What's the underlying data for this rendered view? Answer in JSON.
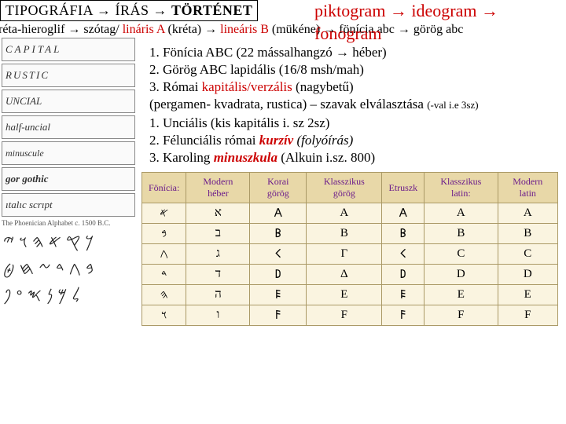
{
  "header": {
    "title_parts": [
      "TIPOGRÁFIA → ",
      "ÍRÁS",
      " → ",
      "TÖRTÉNET"
    ],
    "subtitle": "piktogram → ideogram → fonogram"
  },
  "evolution": {
    "text_parts": [
      {
        "t": "kréta-hieroglif → szótag/ ",
        "c": "#000000"
      },
      {
        "t": "lináris A",
        "c": "#cc0000"
      },
      {
        "t": " (kréta) → ",
        "c": "#000000"
      },
      {
        "t": "lineáris B",
        "c": "#cc0000"
      },
      {
        "t": " (mükéne) → fönícia abc → görög abc",
        "c": "#000000"
      }
    ]
  },
  "scripts": [
    {
      "label": "CAPITAL",
      "style": "font-family:serif;letter-spacing:3px;"
    },
    {
      "label": "RUSTIC",
      "style": "font-family:serif;font-weight:300;letter-spacing:2px;"
    },
    {
      "label": "UNCIAL",
      "style": "font-family:serif;font-variant:small-caps;"
    },
    {
      "label": "half-uncial",
      "style": "font-family:cursive;"
    },
    {
      "label": "minuscule",
      "style": "font-family:cursive;font-size:12px;"
    },
    {
      "label": "gor gothic",
      "style": "font-family:serif;font-weight:bold;"
    },
    {
      "label": "ıtalıc scrıpt",
      "style": "font-style:italic;"
    }
  ],
  "phoenician_note": "The Phoenician Alphabet c. 1500 B.C.",
  "glyph_rows": [
    "𐤊𐤒𐤀𐤄𐤅𐤉",
    "𐤁𐤂𐤃𐤆𐤇𐤈",
    "𐤋𐤌𐤍𐤎𐤏𐤐"
  ],
  "list1": [
    {
      "n": "1.",
      "pre": "Fönícia ABC (22 mássalhangzó → héber)",
      "red": ""
    },
    {
      "n": "2.",
      "pre": "Görög ABC  lapidális (16/8 msh/mah)",
      "red": ""
    },
    {
      "n": "3.",
      "pre": "Római ",
      "red": "kapitális/verzális",
      "post": " (nagybetű)"
    }
  ],
  "pergamen": "(pergamen- kvadrata, rustica) – szavak elválasztása ",
  "pergamen_note": "(-val i.e 3sz)",
  "list2": [
    {
      "n": "1.",
      "pre": "Unciális",
      "post": " (kis kapitális i. sz 2sz)"
    },
    {
      "n": "2.",
      "pre": "Félunciális római ",
      "red": "kurzív",
      "ital": " (folyóírás)"
    },
    {
      "n": "3.",
      "pre": "Karoling ",
      "red": "minuszkula",
      "post": " (Alkuin i.sz. 800)"
    }
  ],
  "table": {
    "headers": [
      "Fönícia:",
      "Modern héber",
      "Korai görög",
      "Klasszikus görög",
      "Etruszk",
      "Klasszikus latin:",
      "Modern latin"
    ],
    "header_color": "#6a1a8a",
    "rows": [
      [
        "𐤀",
        "א",
        "𐌀",
        "Α",
        "𐌀",
        "A",
        "A"
      ],
      [
        "𐤁",
        "ב",
        "𐌁",
        "Β",
        "𐌁",
        "B",
        "B"
      ],
      [
        "𐤂",
        "ג",
        "𐌂",
        "Γ",
        "𐌂",
        "C",
        "C"
      ],
      [
        "𐤃",
        "ד",
        "𐌃",
        "Δ",
        "𐌃",
        "D",
        "D"
      ],
      [
        "𐤄",
        "ה",
        "𐌄",
        "Ε",
        "𐌄",
        "E",
        "E"
      ],
      [
        "𐤅",
        "ו",
        "𐌅",
        "F",
        "𐌅",
        "F",
        "F"
      ]
    ],
    "bg": "#faf4e0",
    "header_bg": "#e8d8a8",
    "border": "#aa9966"
  }
}
